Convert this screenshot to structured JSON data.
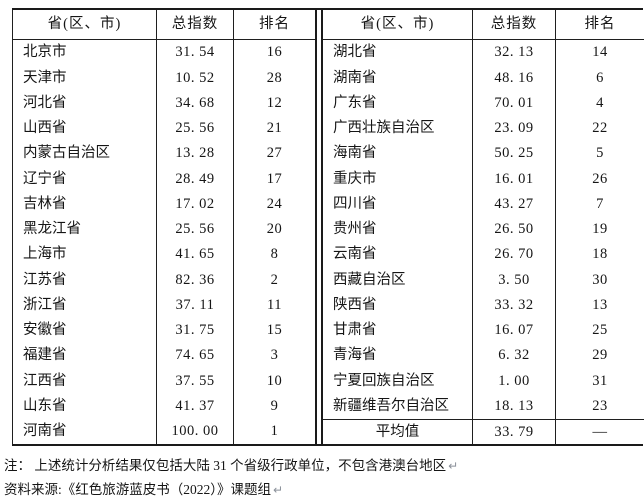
{
  "table": {
    "header": {
      "province": "省(区、市)",
      "index": "总指数",
      "rank": "排名"
    },
    "left_rows": [
      {
        "province": "北京市",
        "index": "31. 54",
        "rank": "16"
      },
      {
        "province": "天津市",
        "index": "10. 52",
        "rank": "28"
      },
      {
        "province": "河北省",
        "index": "34. 68",
        "rank": "12"
      },
      {
        "province": "山西省",
        "index": "25. 56",
        "rank": "21"
      },
      {
        "province": "内蒙古自治区",
        "index": "13. 28",
        "rank": "27"
      },
      {
        "province": "辽宁省",
        "index": "28. 49",
        "rank": "17"
      },
      {
        "province": "吉林省",
        "index": "17. 02",
        "rank": "24"
      },
      {
        "province": "黑龙江省",
        "index": "25. 56",
        "rank": "20"
      },
      {
        "province": "上海市",
        "index": "41. 65",
        "rank": "8"
      },
      {
        "province": "江苏省",
        "index": "82. 36",
        "rank": "2"
      },
      {
        "province": "浙江省",
        "index": "37. 11",
        "rank": "11"
      },
      {
        "province": "安徽省",
        "index": "31. 75",
        "rank": "15"
      },
      {
        "province": "福建省",
        "index": "74. 65",
        "rank": "3"
      },
      {
        "province": "江西省",
        "index": "37. 55",
        "rank": "10"
      },
      {
        "province": "山东省",
        "index": "41. 37",
        "rank": "9"
      },
      {
        "province": "河南省",
        "index": "100. 00",
        "rank": "1"
      }
    ],
    "right_rows": [
      {
        "province": "湖北省",
        "index": "32. 13",
        "rank": "14"
      },
      {
        "province": "湖南省",
        "index": "48. 16",
        "rank": "6"
      },
      {
        "province": "广东省",
        "index": "70. 01",
        "rank": "4"
      },
      {
        "province": "广西壮族自治区",
        "index": "23. 09",
        "rank": "22"
      },
      {
        "province": "海南省",
        "index": "50. 25",
        "rank": "5"
      },
      {
        "province": "重庆市",
        "index": "16. 01",
        "rank": "26"
      },
      {
        "province": "四川省",
        "index": "43. 27",
        "rank": "7"
      },
      {
        "province": "贵州省",
        "index": "26. 50",
        "rank": "19"
      },
      {
        "province": "云南省",
        "index": "26. 70",
        "rank": "18"
      },
      {
        "province": "西藏自治区",
        "index": "3. 50",
        "rank": "30"
      },
      {
        "province": "陕西省",
        "index": "33. 32",
        "rank": "13"
      },
      {
        "province": "甘肃省",
        "index": "16. 07",
        "rank": "25"
      },
      {
        "province": "青海省",
        "index": "6. 32",
        "rank": "29"
      },
      {
        "province": "宁夏回族自治区",
        "index": "1. 00",
        "rank": "31"
      },
      {
        "province": "新疆维吾尔自治区",
        "index": "18. 13",
        "rank": "23"
      }
    ],
    "average_row": {
      "province": "平均值",
      "index": "33. 79",
      "rank": "—"
    }
  },
  "footnotes": {
    "note": "注： 上述统计分析结果仅包括大陆 31 个省级行政单位，不包含港澳台地区",
    "source": "资料来源:《红色旅游蓝皮书（2022）》课题组",
    "paragraph_mark": "↵"
  },
  "colors": {
    "line": "#1a1a1a",
    "text": "#151515",
    "paragraph_mark": "#8a9099"
  }
}
